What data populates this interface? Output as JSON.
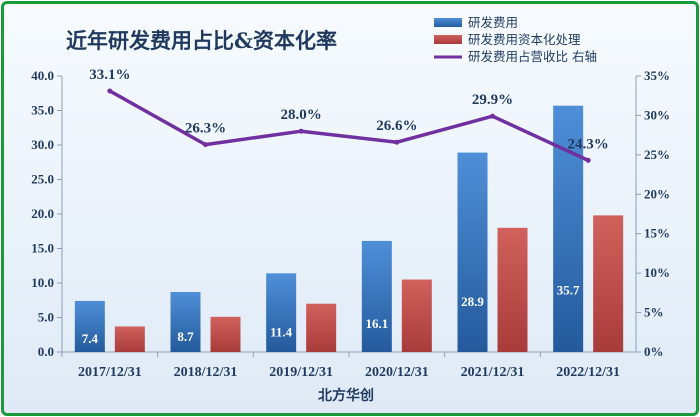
{
  "chart_data": {
    "type": "bar",
    "title": "近年研发费用占比&资本化率",
    "xlabel": "北方华创",
    "categories": [
      "2017/12/31",
      "2018/12/31",
      "2019/12/31",
      "2020/12/31",
      "2021/12/31",
      "2022/12/31"
    ],
    "series": [
      {
        "name": "研发费用",
        "kind": "bar",
        "axis": "left",
        "color": "#3b78c4",
        "values": [
          7.4,
          8.7,
          11.4,
          16.1,
          28.9,
          35.7
        ],
        "labels": [
          "7.4",
          "8.7",
          "11.4",
          "16.1",
          "28.9",
          "35.7"
        ]
      },
      {
        "name": "研发费用资本化处理",
        "kind": "bar",
        "axis": "left",
        "color": "#c0504d",
        "values": [
          3.7,
          5.1,
          7.0,
          10.5,
          18.0,
          19.8
        ]
      },
      {
        "name": "研发费用占营收比 右轴",
        "kind": "line",
        "axis": "right",
        "color": "#7030a0",
        "values": [
          33.1,
          26.3,
          28.0,
          26.6,
          29.9,
          24.3
        ],
        "labels": [
          "33.1%",
          "26.3%",
          "28.0%",
          "26.6%",
          "29.9%",
          "24.3%"
        ]
      }
    ],
    "ylim": [
      0,
      40
    ],
    "yticks": [
      "0.0",
      "5.0",
      "10.0",
      "15.0",
      "20.0",
      "25.0",
      "30.0",
      "35.0",
      "40.0"
    ],
    "y2lim": [
      0,
      35
    ],
    "y2ticks": [
      "0%",
      "5%",
      "10%",
      "15%",
      "20%",
      "25%",
      "30%",
      "35%"
    ],
    "legend_position": "top-right",
    "grid": false
  }
}
